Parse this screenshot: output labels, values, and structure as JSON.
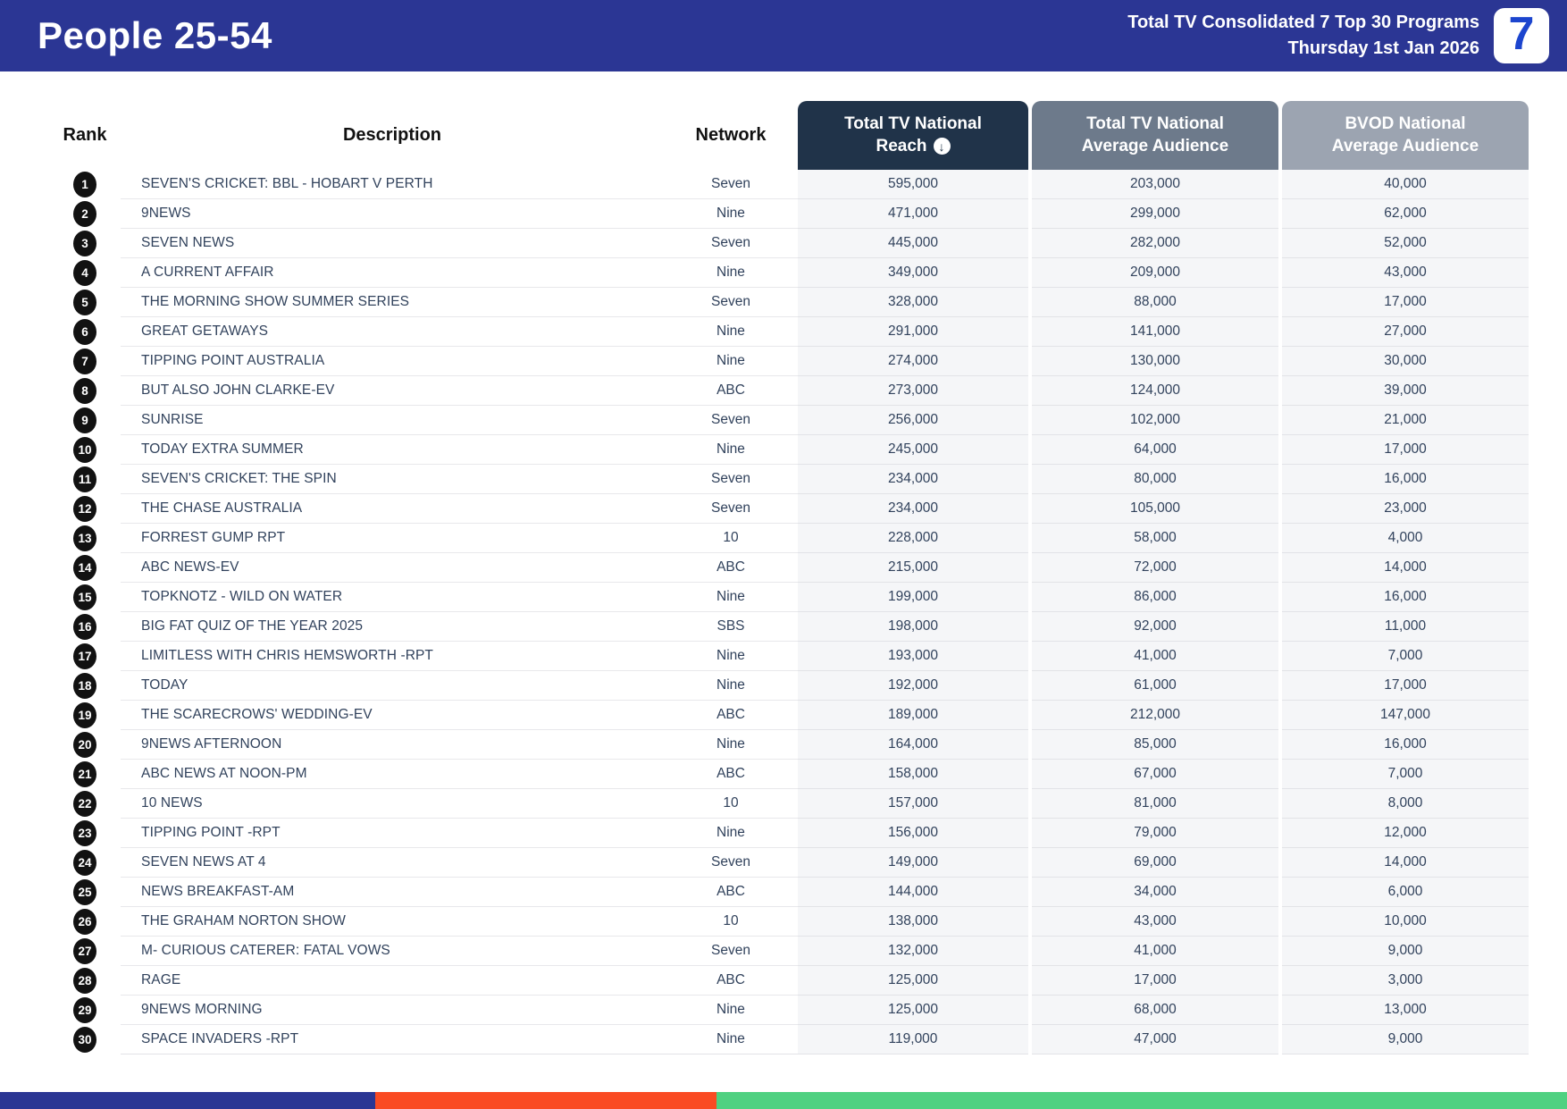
{
  "header": {
    "title": "People 25-54",
    "subtitle_line1": "Total TV Consolidated 7 Top 30 Programs",
    "subtitle_line2": "Thursday 1st Jan 2026",
    "logo_text": "7"
  },
  "table": {
    "columns": {
      "rank": "Rank",
      "description": "Description",
      "network": "Network",
      "reach_line1": "Total TV National",
      "reach_line2": "Reach",
      "reach_sort_glyph": "↓",
      "avg_line1": "Total TV National",
      "avg_line2": "Average Audience",
      "bvod_line1": "BVOD National",
      "bvod_line2": "Average Audience"
    },
    "rows": [
      {
        "rank": "1",
        "description": "SEVEN'S CRICKET: BBL - HOBART V PERTH",
        "network": "Seven",
        "reach": "595,000",
        "avg": "203,000",
        "bvod": "40,000"
      },
      {
        "rank": "2",
        "description": "9NEWS",
        "network": "Nine",
        "reach": "471,000",
        "avg": "299,000",
        "bvod": "62,000"
      },
      {
        "rank": "3",
        "description": "SEVEN NEWS",
        "network": "Seven",
        "reach": "445,000",
        "avg": "282,000",
        "bvod": "52,000"
      },
      {
        "rank": "4",
        "description": "A CURRENT AFFAIR",
        "network": "Nine",
        "reach": "349,000",
        "avg": "209,000",
        "bvod": "43,000"
      },
      {
        "rank": "5",
        "description": "THE MORNING SHOW SUMMER SERIES",
        "network": "Seven",
        "reach": "328,000",
        "avg": "88,000",
        "bvod": "17,000"
      },
      {
        "rank": "6",
        "description": "GREAT GETAWAYS",
        "network": "Nine",
        "reach": "291,000",
        "avg": "141,000",
        "bvod": "27,000"
      },
      {
        "rank": "7",
        "description": "TIPPING POINT AUSTRALIA",
        "network": "Nine",
        "reach": "274,000",
        "avg": "130,000",
        "bvod": "30,000"
      },
      {
        "rank": "8",
        "description": "BUT ALSO JOHN CLARKE-EV",
        "network": "ABC",
        "reach": "273,000",
        "avg": "124,000",
        "bvod": "39,000"
      },
      {
        "rank": "9",
        "description": "SUNRISE",
        "network": "Seven",
        "reach": "256,000",
        "avg": "102,000",
        "bvod": "21,000"
      },
      {
        "rank": "10",
        "description": "TODAY EXTRA SUMMER",
        "network": "Nine",
        "reach": "245,000",
        "avg": "64,000",
        "bvod": "17,000"
      },
      {
        "rank": "11",
        "description": "SEVEN'S CRICKET: THE SPIN",
        "network": "Seven",
        "reach": "234,000",
        "avg": "80,000",
        "bvod": "16,000"
      },
      {
        "rank": "12",
        "description": "THE CHASE AUSTRALIA",
        "network": "Seven",
        "reach": "234,000",
        "avg": "105,000",
        "bvod": "23,000"
      },
      {
        "rank": "13",
        "description": "FORREST GUMP RPT",
        "network": "10",
        "reach": "228,000",
        "avg": "58,000",
        "bvod": "4,000"
      },
      {
        "rank": "14",
        "description": "ABC NEWS-EV",
        "network": "ABC",
        "reach": "215,000",
        "avg": "72,000",
        "bvod": "14,000"
      },
      {
        "rank": "15",
        "description": "TOPKNOTZ - WILD ON WATER",
        "network": "Nine",
        "reach": "199,000",
        "avg": "86,000",
        "bvod": "16,000"
      },
      {
        "rank": "16",
        "description": "BIG FAT QUIZ OF THE YEAR 2025",
        "network": "SBS",
        "reach": "198,000",
        "avg": "92,000",
        "bvod": "11,000"
      },
      {
        "rank": "17",
        "description": "LIMITLESS WITH CHRIS HEMSWORTH -RPT",
        "network": "Nine",
        "reach": "193,000",
        "avg": "41,000",
        "bvod": "7,000"
      },
      {
        "rank": "18",
        "description": "TODAY",
        "network": "Nine",
        "reach": "192,000",
        "avg": "61,000",
        "bvod": "17,000"
      },
      {
        "rank": "19",
        "description": "THE SCARECROWS' WEDDING-EV",
        "network": "ABC",
        "reach": "189,000",
        "avg": "212,000",
        "bvod": "147,000"
      },
      {
        "rank": "20",
        "description": "9NEWS AFTERNOON",
        "network": "Nine",
        "reach": "164,000",
        "avg": "85,000",
        "bvod": "16,000"
      },
      {
        "rank": "21",
        "description": "ABC NEWS AT NOON-PM",
        "network": "ABC",
        "reach": "158,000",
        "avg": "67,000",
        "bvod": "7,000"
      },
      {
        "rank": "22",
        "description": "10 NEWS",
        "network": "10",
        "reach": "157,000",
        "avg": "81,000",
        "bvod": "8,000"
      },
      {
        "rank": "23",
        "description": "TIPPING POINT -RPT",
        "network": "Nine",
        "reach": "156,000",
        "avg": "79,000",
        "bvod": "12,000"
      },
      {
        "rank": "24",
        "description": "SEVEN NEWS AT 4",
        "network": "Seven",
        "reach": "149,000",
        "avg": "69,000",
        "bvod": "14,000"
      },
      {
        "rank": "25",
        "description": "NEWS BREAKFAST-AM",
        "network": "ABC",
        "reach": "144,000",
        "avg": "34,000",
        "bvod": "6,000"
      },
      {
        "rank": "26",
        "description": "THE GRAHAM NORTON SHOW",
        "network": "10",
        "reach": "138,000",
        "avg": "43,000",
        "bvod": "10,000"
      },
      {
        "rank": "27",
        "description": "M- CURIOUS CATERER: FATAL VOWS",
        "network": "Seven",
        "reach": "132,000",
        "avg": "41,000",
        "bvod": "9,000"
      },
      {
        "rank": "28",
        "description": "RAGE",
        "network": "ABC",
        "reach": "125,000",
        "avg": "17,000",
        "bvod": "3,000"
      },
      {
        "rank": "29",
        "description": "9NEWS MORNING",
        "network": "Nine",
        "reach": "125,000",
        "avg": "68,000",
        "bvod": "13,000"
      },
      {
        "rank": "30",
        "description": "SPACE INVADERS -RPT",
        "network": "Nine",
        "reach": "119,000",
        "avg": "47,000",
        "bvod": "9,000"
      }
    ]
  },
  "colors": {
    "banner": "#2B3694",
    "header_reach": "#203349",
    "header_avg": "#6D7A8B",
    "header_bvod": "#9CA4B1",
    "row_text": "#31425C",
    "logo_blue": "#1C45CE"
  },
  "footer": {
    "stripe_colors": [
      "#2B3694",
      "#FA4B23",
      "#4FD181"
    ]
  }
}
